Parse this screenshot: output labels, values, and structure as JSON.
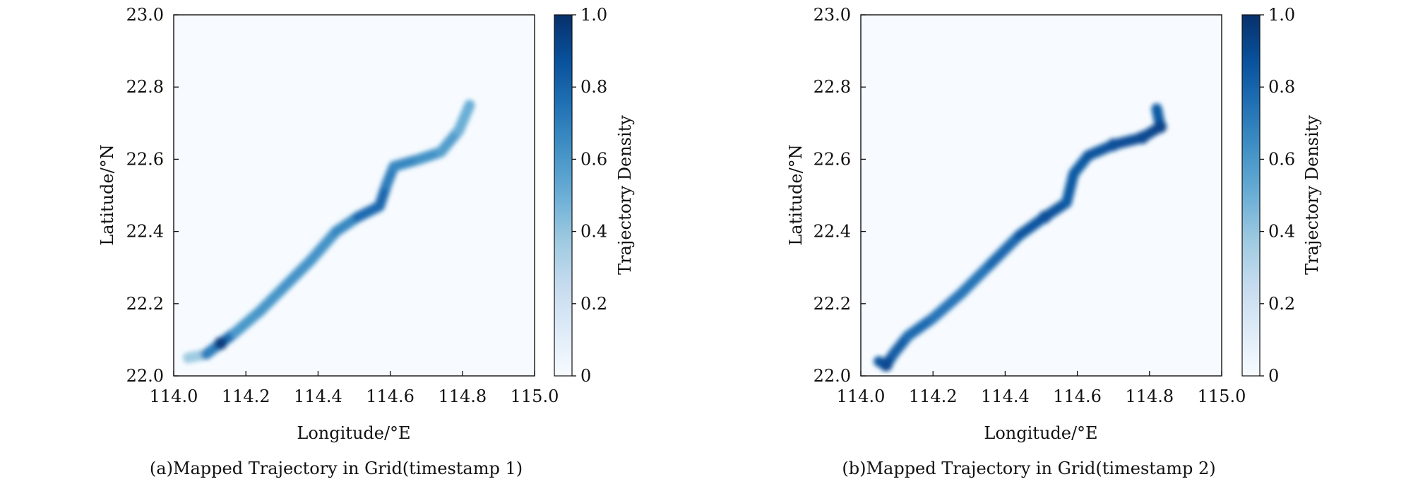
{
  "chart_data": [
    {
      "type": "heatmap",
      "caption": "(a)Mapped Trajectory in Grid(timestamp 1)",
      "xlabel": "Longitude/°E",
      "ylabel": "Latitude/°N",
      "xlim": [
        114.0,
        115.0
      ],
      "ylim": [
        22.0,
        23.0
      ],
      "xticks": [
        "114.0",
        "114.2",
        "114.4",
        "114.6",
        "114.8",
        "115.0"
      ],
      "yticks": [
        "22.0",
        "22.2",
        "22.4",
        "22.6",
        "22.8",
        "23.0"
      ],
      "colorbar": {
        "label": "Trajectory Density",
        "range": [
          0,
          1
        ],
        "ticks": [
          "0",
          "0.2",
          "0.4",
          "0.6",
          "0.8",
          "1.0"
        ],
        "colormap": "Blues"
      },
      "trajectory": [
        {
          "lon": 114.04,
          "lat": 22.05,
          "density": 0.3
        },
        {
          "lon": 114.09,
          "lat": 22.06,
          "density": 0.45
        },
        {
          "lon": 114.13,
          "lat": 22.09,
          "density": 0.95
        },
        {
          "lon": 114.17,
          "lat": 22.12,
          "density": 0.6
        },
        {
          "lon": 114.24,
          "lat": 22.18,
          "density": 0.6
        },
        {
          "lon": 114.31,
          "lat": 22.25,
          "density": 0.62
        },
        {
          "lon": 114.38,
          "lat": 22.32,
          "density": 0.62
        },
        {
          "lon": 114.45,
          "lat": 22.4,
          "density": 0.62
        },
        {
          "lon": 114.51,
          "lat": 22.44,
          "density": 0.7
        },
        {
          "lon": 114.57,
          "lat": 22.47,
          "density": 0.85
        },
        {
          "lon": 114.59,
          "lat": 22.53,
          "density": 0.72
        },
        {
          "lon": 114.61,
          "lat": 22.58,
          "density": 0.68
        },
        {
          "lon": 114.68,
          "lat": 22.6,
          "density": 0.65
        },
        {
          "lon": 114.74,
          "lat": 22.62,
          "density": 0.6
        },
        {
          "lon": 114.79,
          "lat": 22.68,
          "density": 0.55
        },
        {
          "lon": 114.82,
          "lat": 22.75,
          "density": 0.45
        }
      ]
    },
    {
      "type": "heatmap",
      "caption": "(b)Mapped Trajectory in Grid(timestamp 2)",
      "xlabel": "Longitude/°E",
      "ylabel": "Latitude/°N",
      "xlim": [
        114.0,
        115.0
      ],
      "ylim": [
        22.0,
        23.0
      ],
      "xticks": [
        "114.0",
        "114.2",
        "114.4",
        "114.6",
        "114.8",
        "115.0"
      ],
      "yticks": [
        "22.0",
        "22.2",
        "22.4",
        "22.6",
        "22.8",
        "23.0"
      ],
      "colorbar": {
        "label": "Trajectory Density",
        "range": [
          0,
          1
        ],
        "ticks": [
          "0",
          "0.2",
          "0.4",
          "0.6",
          "0.8",
          "1.0"
        ],
        "colormap": "Blues"
      },
      "trajectory": [
        {
          "lon": 114.05,
          "lat": 22.04,
          "density": 0.8
        },
        {
          "lon": 114.07,
          "lat": 22.03,
          "density": 0.9
        },
        {
          "lon": 114.09,
          "lat": 22.06,
          "density": 0.85
        },
        {
          "lon": 114.13,
          "lat": 22.11,
          "density": 0.8
        },
        {
          "lon": 114.2,
          "lat": 22.16,
          "density": 0.75
        },
        {
          "lon": 114.28,
          "lat": 22.23,
          "density": 0.72
        },
        {
          "lon": 114.36,
          "lat": 22.31,
          "density": 0.75
        },
        {
          "lon": 114.44,
          "lat": 22.39,
          "density": 0.82
        },
        {
          "lon": 114.51,
          "lat": 22.44,
          "density": 0.88
        },
        {
          "lon": 114.57,
          "lat": 22.48,
          "density": 0.85
        },
        {
          "lon": 114.59,
          "lat": 22.56,
          "density": 0.82
        },
        {
          "lon": 114.63,
          "lat": 22.61,
          "density": 0.85
        },
        {
          "lon": 114.7,
          "lat": 22.64,
          "density": 0.88
        },
        {
          "lon": 114.78,
          "lat": 22.66,
          "density": 0.9
        },
        {
          "lon": 114.83,
          "lat": 22.69,
          "density": 0.92
        },
        {
          "lon": 114.82,
          "lat": 22.74,
          "density": 0.75
        }
      ]
    }
  ]
}
